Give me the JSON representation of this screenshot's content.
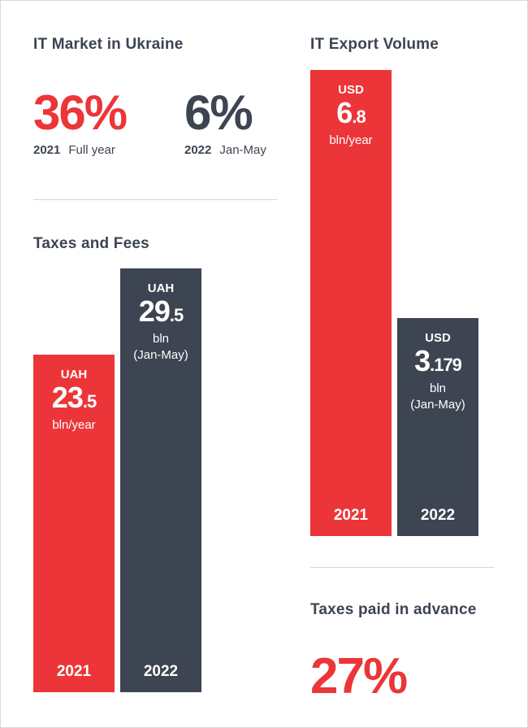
{
  "market": {
    "title": "IT Market in Ukraine",
    "stats": [
      {
        "value": "36%",
        "year": "2021",
        "period": "Full year",
        "color": "#ec3538"
      },
      {
        "value": "6%",
        "year": "2022",
        "period": "Jan-May",
        "color": "#3d4452"
      }
    ]
  },
  "advance": {
    "title": "Taxes paid in advance",
    "value": "27%"
  },
  "chart_data": [
    {
      "type": "bar",
      "title": "Taxes and Fees",
      "categories": [
        "2021",
        "2022"
      ],
      "values": [
        23.5,
        29.5
      ],
      "labels": [
        {
          "currency": "UAH",
          "int": "23",
          "dec": ".5",
          "unit": "bln/year"
        },
        {
          "currency": "UAH",
          "int": "29",
          "dec": ".5",
          "unit": "bln",
          "period": "(Jan-May)"
        }
      ],
      "colors": [
        "#ec3538",
        "#3d4452"
      ]
    },
    {
      "type": "bar",
      "title": "IT Export Volume",
      "categories": [
        "2021",
        "2022"
      ],
      "values": [
        6.8,
        3.179
      ],
      "labels": [
        {
          "currency": "USD",
          "int": "6",
          "dec": ".8",
          "unit": "bln/year"
        },
        {
          "currency": "USD",
          "int": "3",
          "dec": ".179",
          "unit": "bln",
          "period": "(Jan-May)"
        }
      ],
      "colors": [
        "#ec3538",
        "#3d4452"
      ]
    }
  ]
}
